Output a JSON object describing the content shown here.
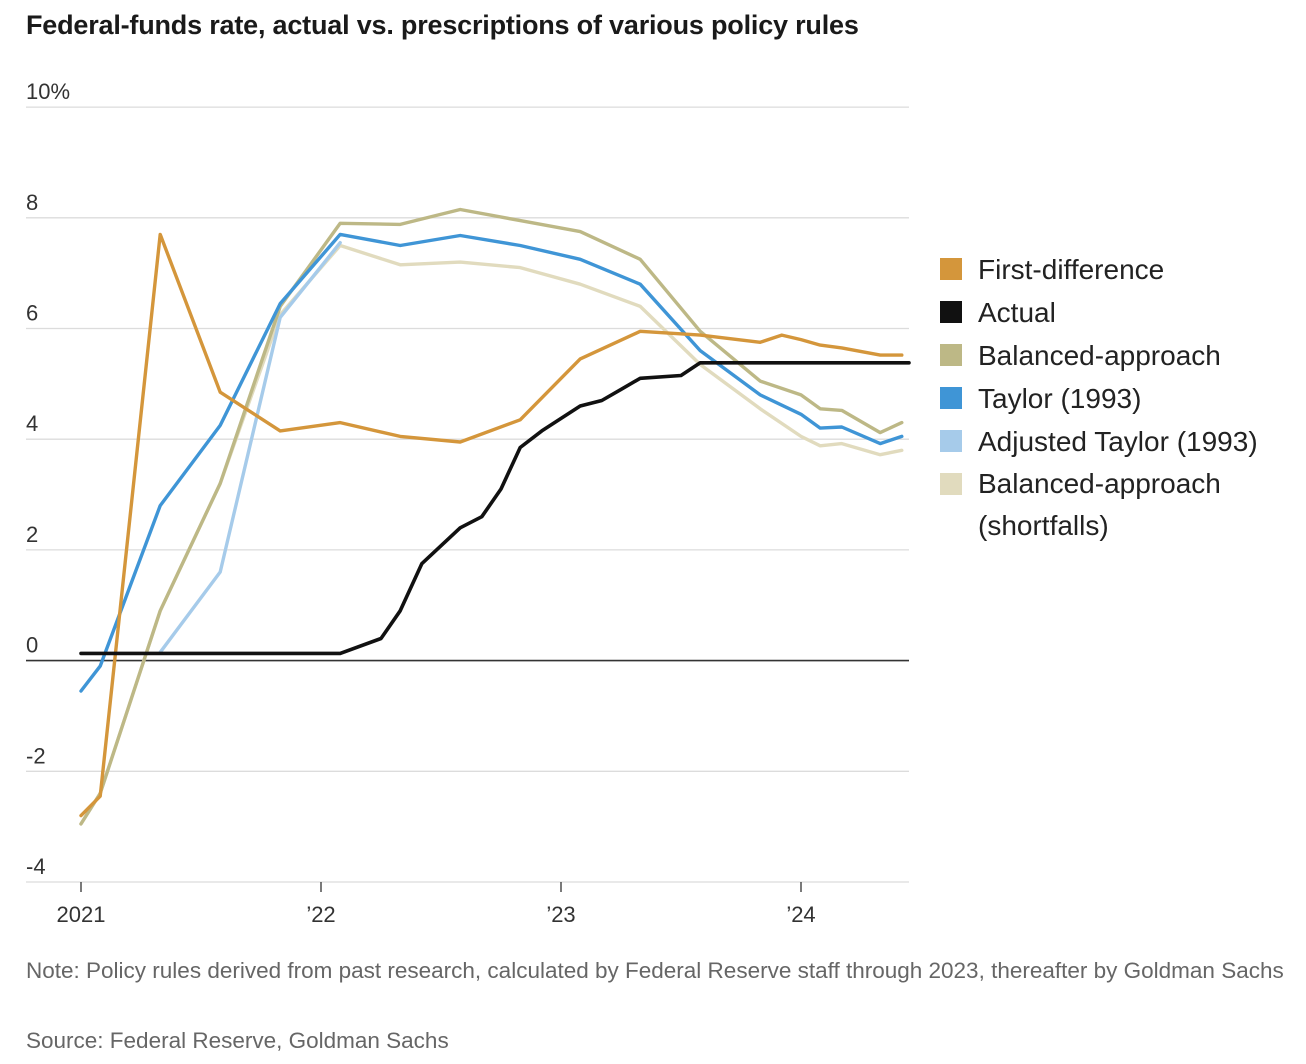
{
  "title": "Federal-funds rate, actual vs. prescriptions of various policy rules",
  "note": "Note: Policy rules derived from past research, calculated by Federal Reserve staff through 2023, thereafter by Goldman Sachs",
  "source": "Source: Federal Reserve, Goldman Sachs",
  "chart_data": {
    "type": "line",
    "y_unit": "%",
    "ylim": [
      -4,
      10
    ],
    "y_ticks": [
      {
        "value": 10,
        "label": "10%"
      },
      {
        "value": 8,
        "label": "8"
      },
      {
        "value": 6,
        "label": "6"
      },
      {
        "value": 4,
        "label": "4"
      },
      {
        "value": 2,
        "label": "2"
      },
      {
        "value": 0,
        "label": "0"
      },
      {
        "value": -2,
        "label": "-2"
      },
      {
        "value": -4,
        "label": "-4"
      }
    ],
    "xlim": [
      2021.0,
      2024.45
    ],
    "x_ticks": [
      {
        "value": 2021,
        "label": "2021"
      },
      {
        "value": 2022,
        "label": "’22"
      },
      {
        "value": 2023,
        "label": "’23"
      },
      {
        "value": 2024,
        "label": "’24"
      }
    ],
    "grid": true,
    "legend_position": "right",
    "series": [
      {
        "name": "First-difference",
        "color": "#d4963b",
        "points": [
          [
            2021.0,
            -2.8
          ],
          [
            2021.08,
            -2.45
          ],
          [
            2021.33,
            7.7
          ],
          [
            2021.58,
            4.85
          ],
          [
            2021.83,
            4.15
          ],
          [
            2022.08,
            4.3
          ],
          [
            2022.33,
            4.05
          ],
          [
            2022.58,
            3.95
          ],
          [
            2022.83,
            4.35
          ],
          [
            2023.08,
            5.45
          ],
          [
            2023.33,
            5.95
          ],
          [
            2023.58,
            5.88
          ],
          [
            2023.83,
            5.75
          ],
          [
            2023.92,
            5.88
          ],
          [
            2024.0,
            5.8
          ],
          [
            2024.08,
            5.7
          ],
          [
            2024.17,
            5.65
          ],
          [
            2024.33,
            5.52
          ],
          [
            2024.42,
            5.52
          ]
        ]
      },
      {
        "name": "Actual",
        "color": "#111111",
        "points": [
          [
            2021.0,
            0.13
          ],
          [
            2022.08,
            0.13
          ],
          [
            2022.25,
            0.4
          ],
          [
            2022.33,
            0.9
          ],
          [
            2022.42,
            1.75
          ],
          [
            2022.58,
            2.4
          ],
          [
            2022.67,
            2.6
          ],
          [
            2022.75,
            3.1
          ],
          [
            2022.83,
            3.85
          ],
          [
            2022.92,
            4.15
          ],
          [
            2023.08,
            4.6
          ],
          [
            2023.17,
            4.7
          ],
          [
            2023.25,
            4.9
          ],
          [
            2023.33,
            5.1
          ],
          [
            2023.5,
            5.15
          ],
          [
            2023.58,
            5.38
          ],
          [
            2024.45,
            5.38
          ]
        ]
      },
      {
        "name": "Balanced-approach",
        "color": "#bdb886",
        "points": [
          [
            2021.0,
            -2.95
          ],
          [
            2021.08,
            -2.4
          ],
          [
            2021.33,
            0.9
          ],
          [
            2021.58,
            3.2
          ],
          [
            2021.83,
            6.4
          ],
          [
            2022.08,
            7.9
          ],
          [
            2022.33,
            7.88
          ],
          [
            2022.58,
            8.15
          ],
          [
            2022.83,
            7.95
          ],
          [
            2023.08,
            7.75
          ],
          [
            2023.33,
            7.25
          ],
          [
            2023.58,
            5.95
          ],
          [
            2023.83,
            5.05
          ],
          [
            2024.0,
            4.8
          ],
          [
            2024.08,
            4.55
          ],
          [
            2024.17,
            4.52
          ],
          [
            2024.33,
            4.12
          ],
          [
            2024.42,
            4.3
          ]
        ]
      },
      {
        "name": "Taylor (1993)",
        "color": "#3f95d6",
        "points": [
          [
            2021.0,
            -0.55
          ],
          [
            2021.08,
            -0.1
          ],
          [
            2021.33,
            2.8
          ],
          [
            2021.58,
            4.25
          ],
          [
            2021.83,
            6.45
          ],
          [
            2022.08,
            7.7
          ],
          [
            2022.33,
            7.5
          ],
          [
            2022.58,
            7.68
          ],
          [
            2022.83,
            7.5
          ],
          [
            2023.08,
            7.25
          ],
          [
            2023.33,
            6.8
          ],
          [
            2023.58,
            5.6
          ],
          [
            2023.83,
            4.8
          ],
          [
            2024.0,
            4.45
          ],
          [
            2024.08,
            4.2
          ],
          [
            2024.17,
            4.22
          ],
          [
            2024.33,
            3.92
          ],
          [
            2024.42,
            4.05
          ]
        ]
      },
      {
        "name": "Adjusted Taylor (1993)",
        "color": "#a6cbea",
        "points": [
          [
            2021.33,
            0.15
          ],
          [
            2021.58,
            1.6
          ],
          [
            2021.83,
            6.2
          ],
          [
            2022.08,
            7.55
          ]
        ]
      },
      {
        "name": "Balanced-approach (shortfalls)",
        "name_lines": [
          "Balanced-approach",
          "(shortfalls)"
        ],
        "color": "#e1dbbe",
        "points": [
          [
            2021.0,
            -2.95
          ],
          [
            2021.08,
            -2.4
          ],
          [
            2021.33,
            0.9
          ],
          [
            2021.58,
            3.2
          ],
          [
            2021.83,
            6.25
          ],
          [
            2022.08,
            7.5
          ],
          [
            2022.33,
            7.15
          ],
          [
            2022.58,
            7.2
          ],
          [
            2022.83,
            7.1
          ],
          [
            2023.08,
            6.8
          ],
          [
            2023.33,
            6.4
          ],
          [
            2023.58,
            5.35
          ],
          [
            2023.83,
            4.55
          ],
          [
            2024.0,
            4.05
          ],
          [
            2024.08,
            3.88
          ],
          [
            2024.17,
            3.92
          ],
          [
            2024.33,
            3.72
          ],
          [
            2024.42,
            3.8
          ]
        ]
      }
    ]
  }
}
